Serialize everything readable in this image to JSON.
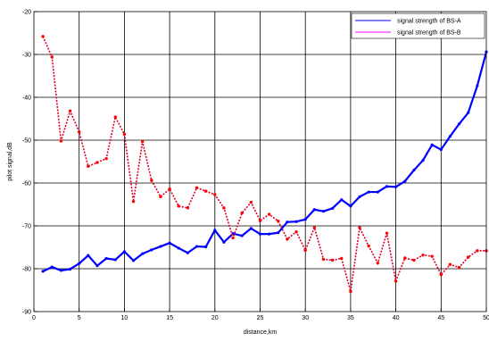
{
  "chart_data": {
    "type": "line",
    "xlabel": "distance,km",
    "ylabel": "pilot signal,dB",
    "xlim": [
      0,
      50
    ],
    "ylim": [
      -90,
      -20
    ],
    "xticks": [
      0,
      5,
      10,
      15,
      20,
      25,
      30,
      35,
      40,
      45,
      50
    ],
    "yticks": [
      -90,
      -80,
      -70,
      -60,
      -50,
      -40,
      -30,
      -20
    ],
    "grid": true,
    "legend_position": "top-right",
    "series": [
      {
        "name": "signal strength of BS-A",
        "color": "#0000ff",
        "x": [
          1,
          2,
          3,
          4,
          5,
          6,
          7,
          8,
          9,
          10,
          11,
          12,
          13,
          14,
          15,
          16,
          17,
          18,
          19,
          20,
          21,
          22,
          23,
          24,
          25,
          26,
          27,
          28,
          29,
          30,
          31,
          32,
          33,
          34,
          35,
          36,
          37,
          38,
          39,
          40,
          41,
          42,
          43,
          44,
          45,
          46,
          47,
          48,
          49,
          50
        ],
        "values": [
          -80.6,
          -79.6,
          -80.4,
          -80.1,
          -78.8,
          -76.9,
          -79.3,
          -77.6,
          -77.9,
          -76.0,
          -78.1,
          -76.5,
          -75.6,
          -74.8,
          -74.0,
          -75.2,
          -76.3,
          -74.8,
          -74.9,
          -71.0,
          -73.8,
          -71.8,
          -72.3,
          -70.6,
          -71.9,
          -71.9,
          -71.6,
          -69.1,
          -69.0,
          -68.5,
          -66.2,
          -66.6,
          -65.9,
          -63.9,
          -65.4,
          -63.2,
          -62.1,
          -62.1,
          -60.8,
          -60.9,
          -59.6,
          -57.0,
          -54.7,
          -51.1,
          -52.2,
          -49.1,
          -46.2,
          -43.6,
          -37.3,
          -29.4
        ]
      },
      {
        "name": "signal strength of BS-B",
        "color": "#ff00ff",
        "x": [
          1,
          2,
          3,
          4,
          5,
          6,
          7,
          8,
          9,
          10,
          11,
          12,
          13,
          14,
          15,
          16,
          17,
          18,
          19,
          20,
          21,
          22,
          23,
          24,
          25,
          26,
          27,
          28,
          29,
          30,
          31,
          32,
          33,
          34,
          35,
          36,
          37,
          38,
          39,
          40,
          41,
          42,
          43,
          44,
          45,
          46,
          47,
          48,
          49,
          50
        ],
        "values": [
          -25.8,
          -30.6,
          -50.2,
          -43.2,
          -48.1,
          -56.1,
          -55.2,
          -54.3,
          -44.6,
          -48.6,
          -64.3,
          -50.3,
          -59.4,
          -63.2,
          -61.4,
          -65.4,
          -65.8,
          -61.1,
          -61.9,
          -62.7,
          -65.8,
          -72.8,
          -67.0,
          -64.5,
          -68.8,
          -67.3,
          -68.9,
          -73.1,
          -71.4,
          -75.7,
          -70.4,
          -77.8,
          -78.0,
          -77.6,
          -85.3,
          -70.4,
          -74.7,
          -78.7,
          -71.7,
          -82.9,
          -77.5,
          -78.0,
          -76.8,
          -77.1,
          -81.4,
          -79.0,
          -79.7,
          -77.3,
          -75.8,
          -75.8
        ]
      }
    ]
  }
}
